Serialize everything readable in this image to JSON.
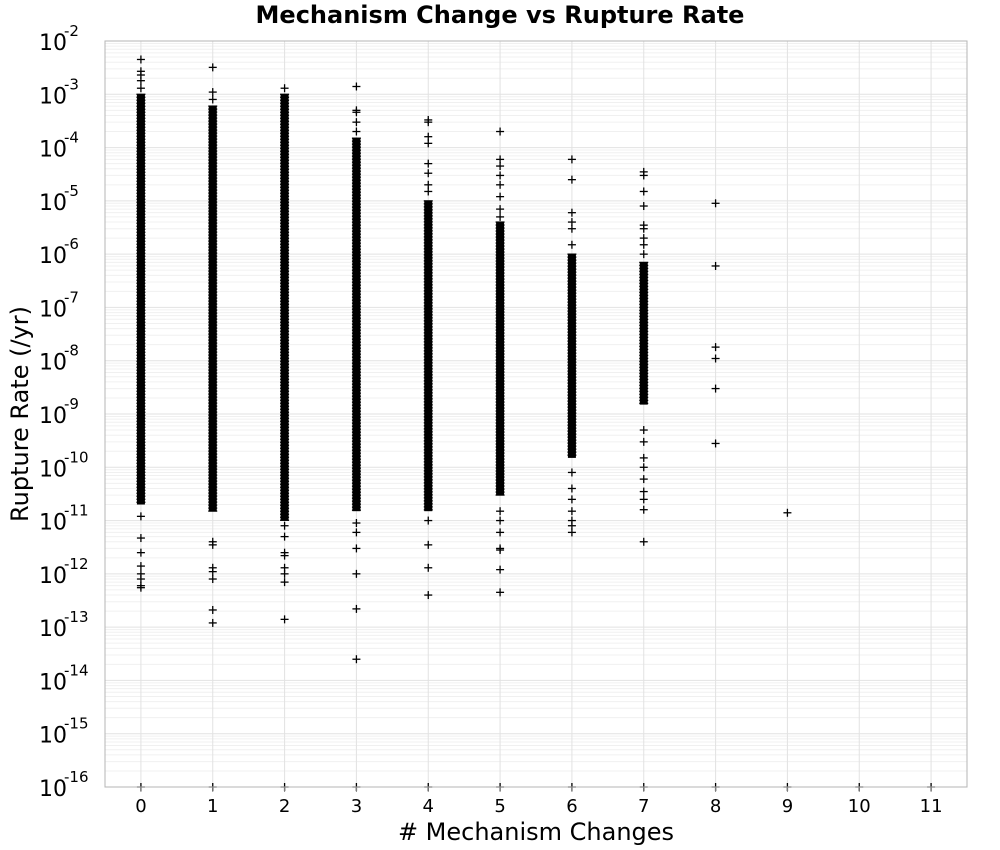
{
  "chart_data": {
    "type": "scatter",
    "title": "Mechanism Change vs Rupture Rate",
    "xlabel": "# Mechanism Changes",
    "ylabel": "Rupture Rate (/yr)",
    "x_ticks": [
      0,
      1,
      2,
      3,
      4,
      5,
      6,
      7,
      8,
      9,
      10,
      11
    ],
    "y_scale": "log",
    "y_ticks": [
      {
        "base": "10",
        "exp": "-2",
        "value": 0.01
      },
      {
        "base": "10",
        "exp": "-3",
        "value": 0.001
      },
      {
        "base": "10",
        "exp": "-4",
        "value": 0.0001
      },
      {
        "base": "10",
        "exp": "-5",
        "value": 1e-05
      },
      {
        "base": "10",
        "exp": "-6",
        "value": 1e-06
      },
      {
        "base": "10",
        "exp": "-7",
        "value": 1e-07
      },
      {
        "base": "10",
        "exp": "-8",
        "value": 1e-08
      },
      {
        "base": "10",
        "exp": "-9",
        "value": 1e-09
      },
      {
        "base": "10",
        "exp": "-10",
        "value": 1e-10
      },
      {
        "base": "10",
        "exp": "-11",
        "value": 1e-11
      },
      {
        "base": "10",
        "exp": "-12",
        "value": 1e-12
      },
      {
        "base": "10",
        "exp": "-13",
        "value": 1e-13
      },
      {
        "base": "10",
        "exp": "-14",
        "value": 1e-14
      },
      {
        "base": "10",
        "exp": "-15",
        "value": 1e-15
      },
      {
        "base": "10",
        "exp": "-16",
        "value": 1e-16
      }
    ],
    "xlim": [
      -0.5,
      11.5
    ],
    "ylim": [
      1e-16,
      0.01
    ],
    "grid": true,
    "marker": "+",
    "color": "#000000",
    "columns": [
      {
        "x": 0,
        "dense_range": [
          2e-11,
          0.001
        ],
        "outliers": [
          0.0045,
          0.0027,
          0.0023,
          0.0018,
          0.0013,
          1.2e-11,
          4.7e-12,
          2.5e-12,
          1.4e-12,
          1e-12,
          8e-13,
          6e-13,
          5.5e-13,
          1e-16
        ]
      },
      {
        "x": 1,
        "dense_range": [
          1.5e-11,
          0.0006
        ],
        "outliers": [
          0.0032,
          0.0011,
          0.0008,
          4e-12,
          3.5e-12,
          1.3e-12,
          1.1e-12,
          8e-13,
          2.1e-13,
          1.2e-13,
          1e-16
        ]
      },
      {
        "x": 2,
        "dense_range": [
          1e-11,
          0.001
        ],
        "outliers": [
          0.0013,
          8e-12,
          5e-12,
          2.5e-12,
          2.2e-12,
          1.3e-12,
          1e-12,
          7e-13,
          1.4e-13,
          1e-16
        ]
      },
      {
        "x": 3,
        "dense_range": [
          1.5e-11,
          0.00015
        ],
        "outliers": [
          0.0014,
          0.0005,
          0.00046,
          0.0003,
          0.0002,
          9e-12,
          6e-12,
          3e-12,
          1e-12,
          2.2e-13,
          2.5e-14,
          1e-16
        ]
      },
      {
        "x": 4,
        "dense_range": [
          1.5e-11,
          1e-05
        ],
        "outliers": [
          0.00033,
          0.0003,
          0.00016,
          0.00012,
          5e-05,
          3.3e-05,
          2e-05,
          1.5e-05,
          1e-11,
          3.5e-12,
          1.3e-12,
          4e-13,
          1e-16
        ]
      },
      {
        "x": 5,
        "dense_range": [
          3e-11,
          4e-06
        ],
        "outliers": [
          0.0002,
          6e-05,
          4.5e-05,
          3e-05,
          2e-05,
          1.2e-05,
          7e-06,
          5e-06,
          1.5e-11,
          1e-11,
          6e-12,
          3e-12,
          2.8e-12,
          1.2e-12,
          4.5e-13,
          1e-16
        ]
      },
      {
        "x": 6,
        "dense_range": [
          1.5e-10,
          1e-06
        ],
        "outliers": [
          6e-05,
          2.5e-05,
          6e-06,
          4e-06,
          3e-06,
          1.5e-06,
          8e-11,
          4e-11,
          2.5e-11,
          1.5e-11,
          1e-11,
          8e-12,
          6e-12,
          1e-16
        ]
      },
      {
        "x": 7,
        "dense_range": [
          1.5e-09,
          7e-07
        ],
        "outliers": [
          3.5e-05,
          3e-05,
          1.5e-05,
          8e-06,
          3.5e-06,
          3e-06,
          2e-06,
          1.5e-06,
          1e-06,
          5e-10,
          3e-10,
          1.5e-10,
          1e-10,
          6e-11,
          3.5e-11,
          2.5e-11,
          1.6e-11,
          4e-12,
          1e-16
        ]
      },
      {
        "x": 8,
        "dense_range": null,
        "outliers": [
          9e-06,
          6e-07,
          1.8e-08,
          1.1e-08,
          3e-09,
          2.8e-10,
          1e-16
        ]
      },
      {
        "x": 9,
        "dense_range": null,
        "outliers": [
          1.4e-11,
          1e-16
        ]
      },
      {
        "x": 10,
        "dense_range": null,
        "outliers": [
          1e-16
        ]
      },
      {
        "x": 11,
        "dense_range": null,
        "outliers": [
          1e-16
        ]
      }
    ]
  }
}
